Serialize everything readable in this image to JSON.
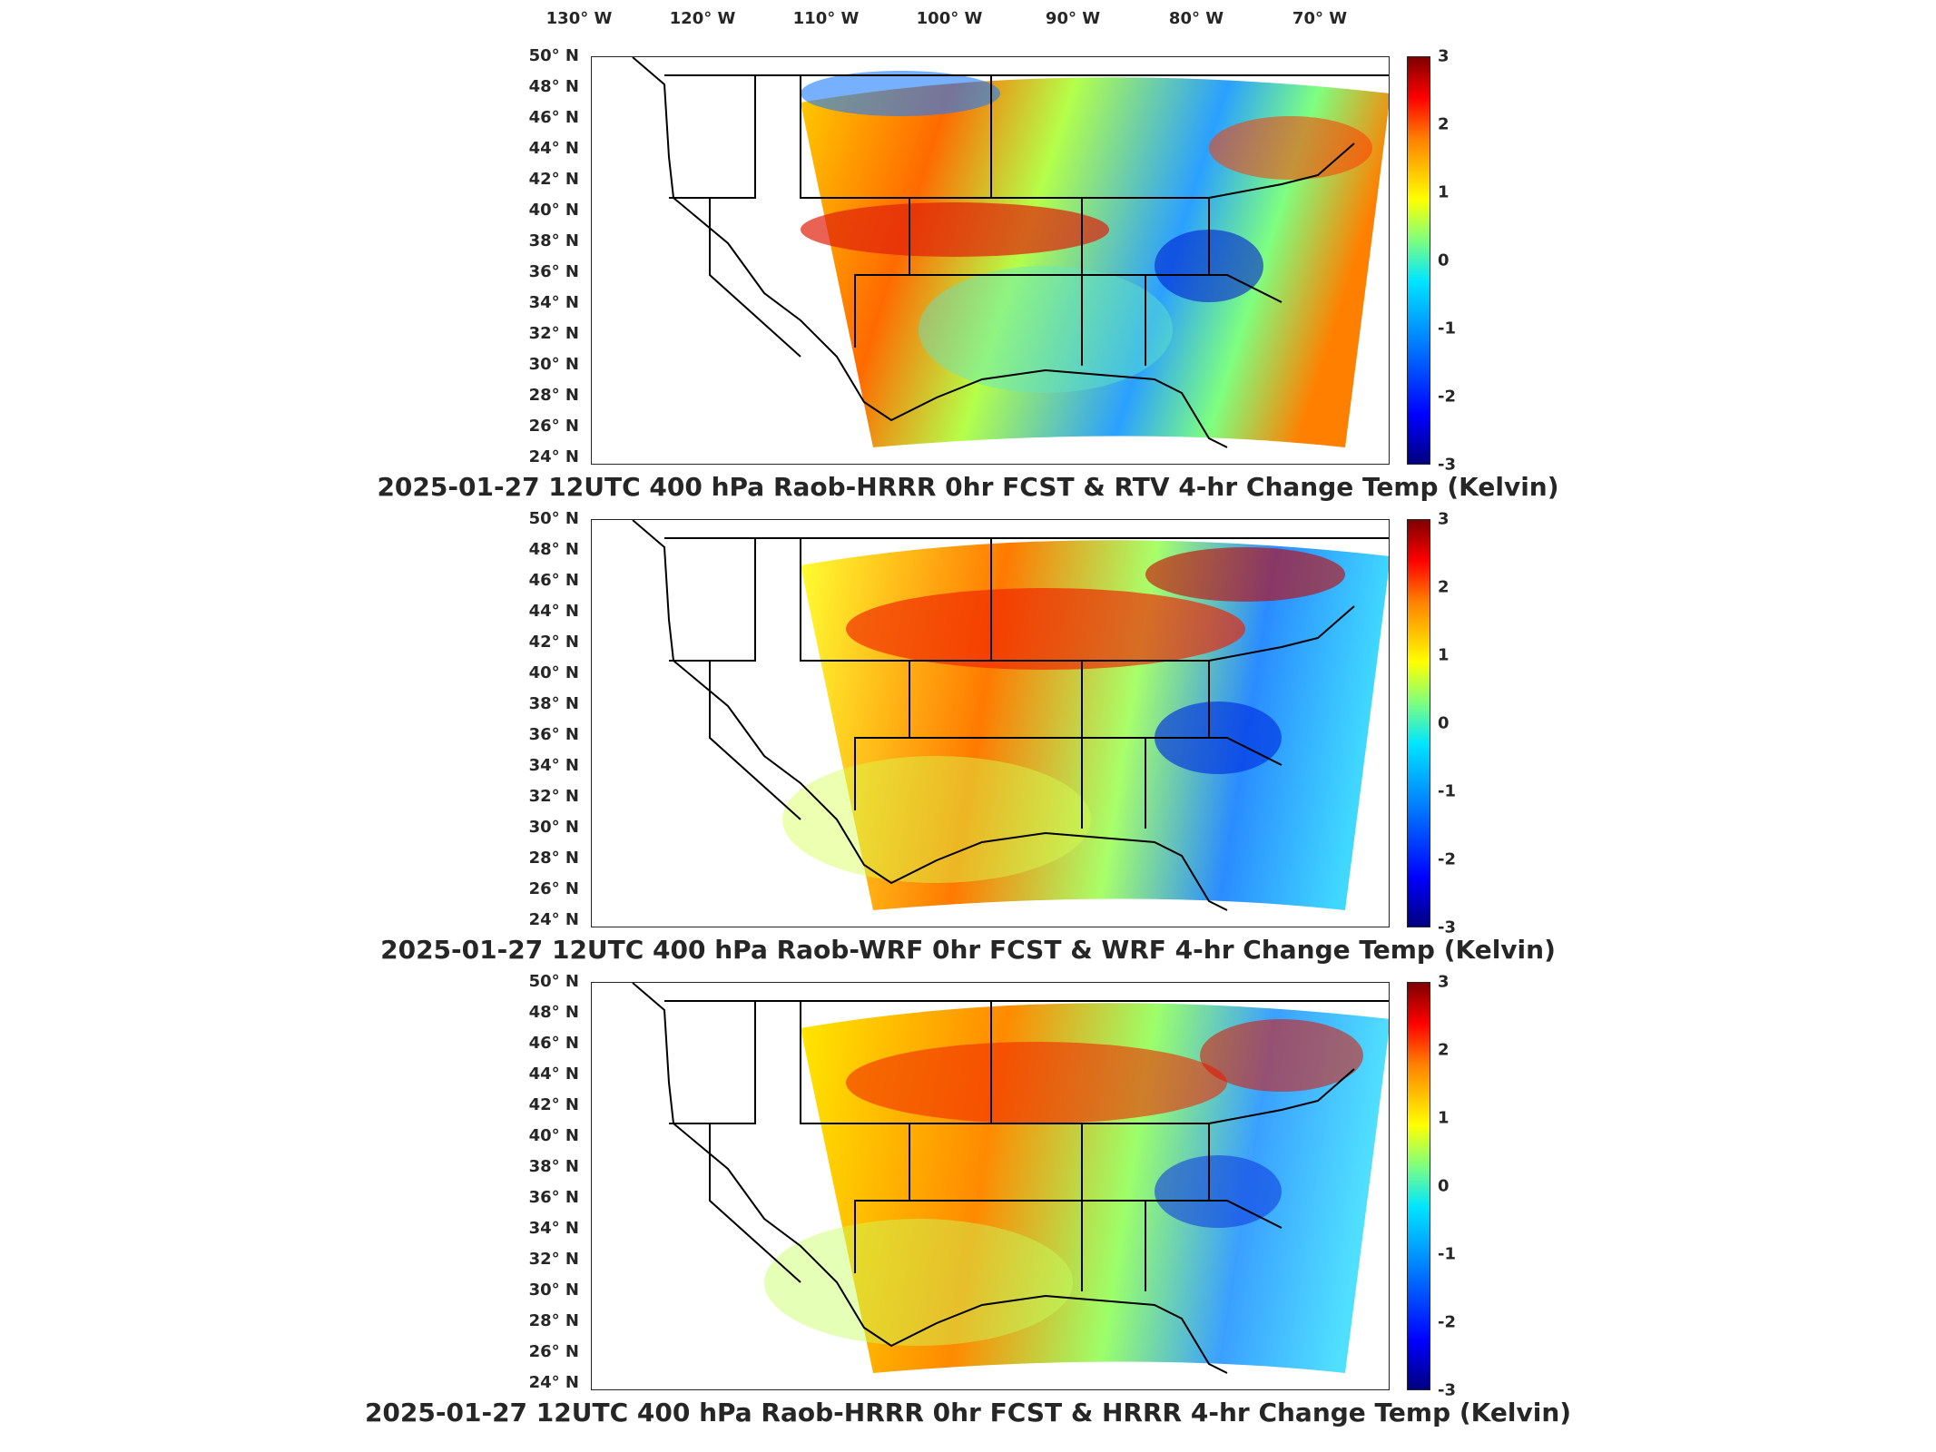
{
  "longitude_labels": [
    "130° W",
    "120° W",
    "110° W",
    "100° W",
    "90° W",
    "80° W",
    "70° W"
  ],
  "latitude_labels": [
    "50° N",
    "48° N",
    "46° N",
    "44° N",
    "42° N",
    "40° N",
    "38° N",
    "36° N",
    "34° N",
    "32° N",
    "30° N",
    "28° N",
    "26° N",
    "24° N"
  ],
  "colorbar": {
    "ticks": [
      "3",
      "2",
      "1",
      "0",
      "-1",
      "-2",
      "-3"
    ],
    "colors": [
      "#7f0000",
      "#ff0000",
      "#ff8000",
      "#ffff00",
      "#7fff7f",
      "#00e5ff",
      "#0080ff",
      "#0000ff",
      "#00007f"
    ]
  },
  "panels": [
    {
      "title": "2025-01-27 12UTC 400 hPa Raob-HRRR 0hr FCST & RTV 4-hr Change Temp (Kelvin)"
    },
    {
      "title": "2025-01-27 12UTC 400 hPa Raob-WRF 0hr FCST & WRF 4-hr Change Temp (Kelvin)"
    },
    {
      "title": "2025-01-27 12UTC 400 hPa Raob-HRRR 0hr FCST & HRRR 4-hr Change Temp (Kelvin)"
    }
  ]
}
